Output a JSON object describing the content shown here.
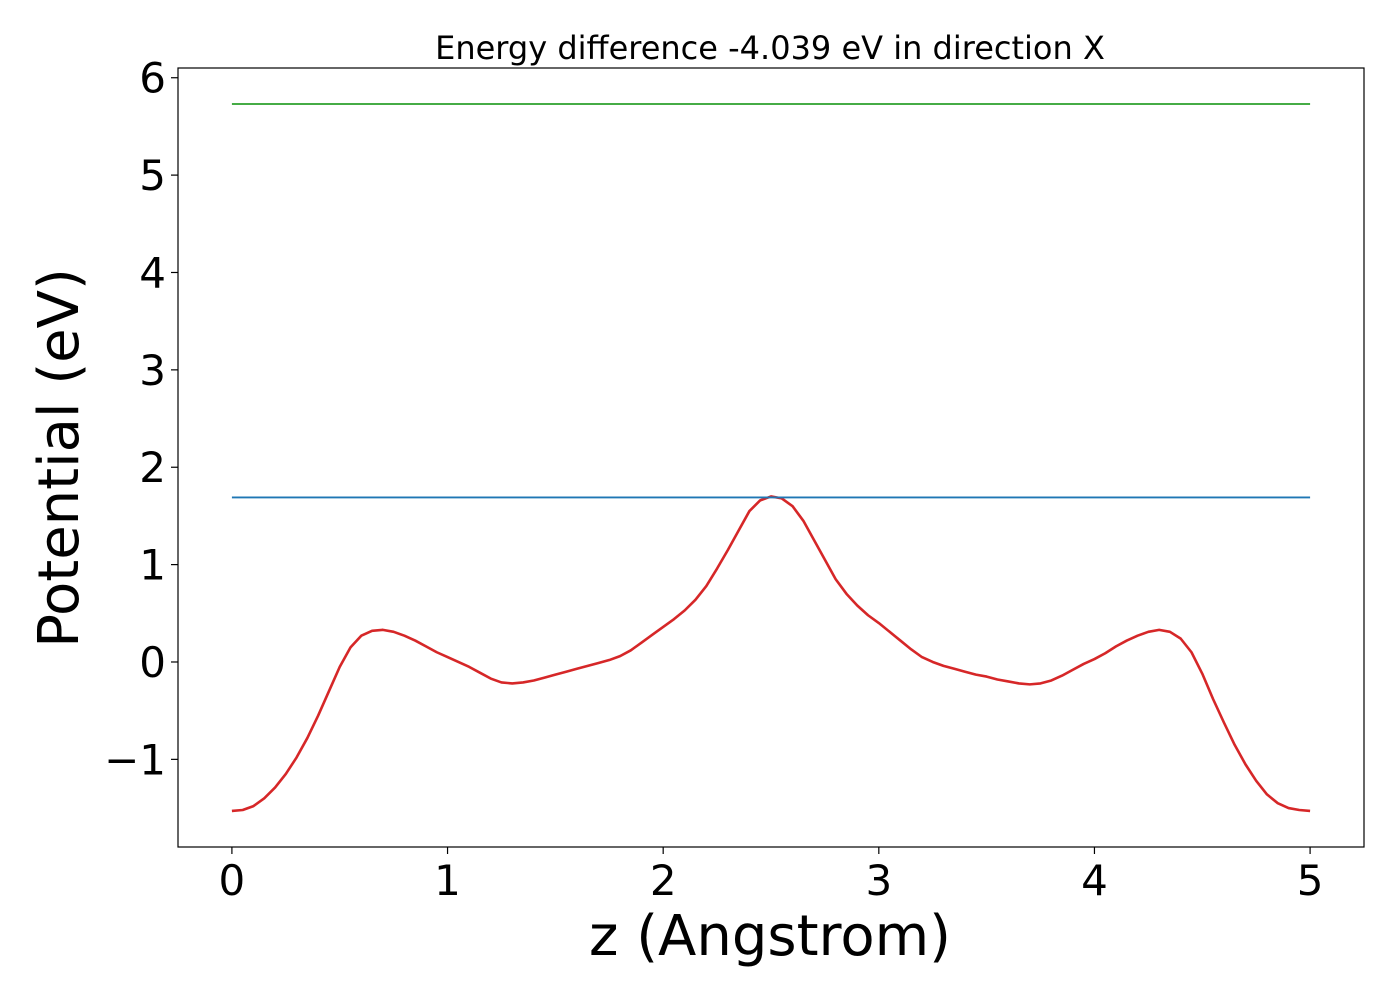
{
  "chart_data": {
    "type": "line",
    "title": "Energy difference -4.039 eV in direction X",
    "xlabel": "z (Angstrom)",
    "ylabel": "Potential (eV)",
    "xlim": [
      -0.25,
      5.25
    ],
    "ylim": [
      -1.9,
      6.1
    ],
    "xticks": [
      0,
      1,
      2,
      3,
      4,
      5
    ],
    "xtick_labels": [
      "0",
      "1",
      "2",
      "3",
      "4",
      "5"
    ],
    "yticks": [
      -1,
      0,
      1,
      2,
      3,
      4,
      5,
      6
    ],
    "ytick_labels": [
      "−1",
      "0",
      "1",
      "2",
      "3",
      "4",
      "5",
      "6"
    ],
    "grid": false,
    "legend": false,
    "series": [
      {
        "color": "#d62728",
        "x": [
          0,
          0.05,
          0.1,
          0.15,
          0.2,
          0.25,
          0.3,
          0.35,
          0.4,
          0.45,
          0.5,
          0.55,
          0.6,
          0.65,
          0.7,
          0.75,
          0.8,
          0.85,
          0.9,
          0.95,
          1.0,
          1.05,
          1.1,
          1.15,
          1.2,
          1.25,
          1.3,
          1.35,
          1.4,
          1.45,
          1.5,
          1.55,
          1.6,
          1.65,
          1.7,
          1.75,
          1.8,
          1.85,
          1.9,
          1.95,
          2.0,
          2.05,
          2.1,
          2.15,
          2.2,
          2.25,
          2.3,
          2.35,
          2.4,
          2.45,
          2.5,
          2.55,
          2.6,
          2.65,
          2.7,
          2.75,
          2.8,
          2.85,
          2.9,
          2.95,
          3.0,
          3.05,
          3.1,
          3.15,
          3.2,
          3.25,
          3.3,
          3.35,
          3.4,
          3.45,
          3.5,
          3.55,
          3.6,
          3.65,
          3.7,
          3.75,
          3.8,
          3.85,
          3.9,
          3.95,
          4.0,
          4.05,
          4.1,
          4.15,
          4.2,
          4.25,
          4.3,
          4.35,
          4.4,
          4.45,
          4.5,
          4.55,
          4.6,
          4.65,
          4.7,
          4.75,
          4.8,
          4.85,
          4.9,
          4.95,
          5.0
        ],
        "y": [
          -1.53,
          -1.52,
          -1.48,
          -1.4,
          -1.29,
          -1.15,
          -0.98,
          -0.78,
          -0.55,
          -0.3,
          -0.05,
          0.15,
          0.27,
          0.32,
          0.33,
          0.31,
          0.27,
          0.22,
          0.16,
          0.1,
          0.05,
          0.0,
          -0.05,
          -0.11,
          -0.17,
          -0.21,
          -0.22,
          -0.21,
          -0.19,
          -0.16,
          -0.13,
          -0.1,
          -0.07,
          -0.04,
          -0.01,
          0.02,
          0.06,
          0.12,
          0.2,
          0.28,
          0.36,
          0.44,
          0.53,
          0.64,
          0.78,
          0.96,
          1.15,
          1.35,
          1.55,
          1.66,
          1.7,
          1.68,
          1.6,
          1.45,
          1.25,
          1.05,
          0.85,
          0.7,
          0.58,
          0.48,
          0.4,
          0.31,
          0.22,
          0.13,
          0.05,
          0.0,
          -0.04,
          -0.07,
          -0.1,
          -0.13,
          -0.15,
          -0.18,
          -0.2,
          -0.22,
          -0.23,
          -0.22,
          -0.19,
          -0.14,
          -0.08,
          -0.02,
          0.03,
          0.09,
          0.16,
          0.22,
          0.27,
          0.31,
          0.33,
          0.31,
          0.24,
          0.1,
          -0.12,
          -0.38,
          -0.62,
          -0.85,
          -1.05,
          -1.22,
          -1.36,
          -1.45,
          -1.5,
          -1.52,
          -1.53
        ]
      },
      {
        "color": "#1f77b4",
        "x": [
          0,
          5
        ],
        "y": [
          1.69,
          1.69
        ]
      },
      {
        "color": "#2ca02c",
        "x": [
          0,
          5
        ],
        "y": [
          5.73,
          5.73
        ]
      }
    ]
  }
}
